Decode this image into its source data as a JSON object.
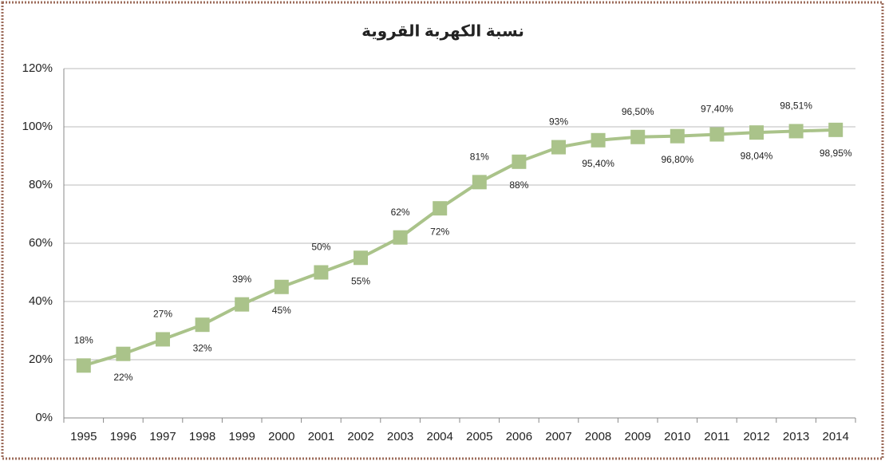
{
  "chart_data": {
    "type": "line",
    "title": "نسبة الكهربة القروية",
    "categories": [
      "1995",
      "1996",
      "1997",
      "1998",
      "1999",
      "2000",
      "2001",
      "2002",
      "2003",
      "2004",
      "2005",
      "2006",
      "2007",
      "2008",
      "2009",
      "2010",
      "2011",
      "2012",
      "2013",
      "2014"
    ],
    "series": [
      {
        "name": null,
        "color": "#aac38a",
        "values": [
          18,
          22,
          27,
          32,
          39,
          45,
          50,
          55,
          62,
          72,
          81,
          88,
          93,
          95.4,
          96.5,
          96.8,
          97.4,
          98.04,
          98.51,
          98.95
        ],
        "value_labels": [
          "18%",
          "22%",
          "27%",
          "32%",
          "39%",
          "45%",
          "50%",
          "55%",
          "62%",
          "72%",
          "81%",
          "88%",
          "93%",
          "95,40%",
          "96,50%",
          "96,80%",
          "97,40%",
          "98,04%",
          "98,51%",
          "98,95%"
        ]
      }
    ],
    "ylim": [
      0,
      120
    ],
    "yticks": [
      {
        "value": 0,
        "label": "0%"
      },
      {
        "value": 20,
        "label": "20%"
      },
      {
        "value": 40,
        "label": "40%"
      },
      {
        "value": 60,
        "label": "60%"
      },
      {
        "value": 80,
        "label": "80%"
      },
      {
        "value": 100,
        "label": "100%"
      },
      {
        "value": 120,
        "label": "120%"
      }
    ],
    "grid": true
  }
}
